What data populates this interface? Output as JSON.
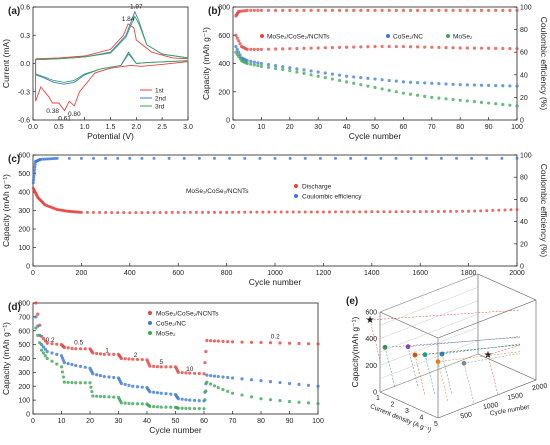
{
  "chart_data": [
    {
      "id": "a",
      "panel_label": "(a)",
      "type": "line",
      "xlabel": "Potential (V)",
      "ylabel": "Current (mA)",
      "xlim": [
        0,
        3.0
      ],
      "ylim": [
        -0.6,
        0.6
      ],
      "xticks": [
        "0.0",
        "0.5",
        "1.0",
        "1.5",
        "2.0",
        "2.5",
        "3.0"
      ],
      "yticks": [
        "-0.6",
        "-0.3",
        "0.0",
        "0.3",
        "0.6"
      ],
      "annotations": [
        "1.97",
        "1.84",
        "0.38",
        "0.61",
        "0.80"
      ],
      "annotation_points": [
        [
          2.0,
          0.55
        ],
        [
          1.84,
          0.42
        ],
        [
          0.38,
          -0.42
        ],
        [
          0.61,
          -0.5
        ],
        [
          0.8,
          -0.45
        ]
      ],
      "series": [
        {
          "name": "1st",
          "color": "#e8413c",
          "loop_upper": [
            [
              0.05,
              0.05
            ],
            [
              0.5,
              0.06
            ],
            [
              1.0,
              0.08
            ],
            [
              1.5,
              0.15
            ],
            [
              1.75,
              0.3
            ],
            [
              1.84,
              0.42
            ],
            [
              1.95,
              0.38
            ],
            [
              2.0,
              0.25
            ],
            [
              2.3,
              0.12
            ],
            [
              2.7,
              0.06
            ],
            [
              3.0,
              0.05
            ]
          ],
          "loop_lower": [
            [
              3.0,
              0.02
            ],
            [
              2.5,
              -0.01
            ],
            [
              2.1,
              -0.03
            ],
            [
              1.9,
              -0.02
            ],
            [
              1.5,
              -0.05
            ],
            [
              1.2,
              -0.1
            ],
            [
              0.9,
              -0.3
            ],
            [
              0.8,
              -0.45
            ],
            [
              0.7,
              -0.4
            ],
            [
              0.61,
              -0.5
            ],
            [
              0.5,
              -0.42
            ],
            [
              0.38,
              -0.42
            ],
            [
              0.3,
              -0.35
            ],
            [
              0.15,
              -0.25
            ],
            [
              0.05,
              -0.4
            ]
          ]
        },
        {
          "name": "2nd",
          "color": "#3b78d8",
          "loop_upper": [
            [
              0.05,
              0.04
            ],
            [
              0.5,
              0.05
            ],
            [
              1.0,
              0.07
            ],
            [
              1.5,
              0.12
            ],
            [
              1.8,
              0.3
            ],
            [
              1.97,
              0.55
            ],
            [
              2.05,
              0.45
            ],
            [
              2.2,
              0.2
            ],
            [
              2.5,
              0.1
            ],
            [
              3.0,
              0.06
            ]
          ],
          "loop_lower": [
            [
              3.0,
              0.03
            ],
            [
              2.2,
              0.01
            ],
            [
              2.0,
              0.0
            ],
            [
              1.85,
              0.12
            ],
            [
              1.7,
              -0.02
            ],
            [
              1.3,
              -0.06
            ],
            [
              1.0,
              -0.12
            ],
            [
              0.8,
              -0.2
            ],
            [
              0.6,
              -0.22
            ],
            [
              0.4,
              -0.2
            ],
            [
              0.2,
              -0.15
            ],
            [
              0.05,
              -0.12
            ]
          ]
        },
        {
          "name": "3rd",
          "color": "#3aa655",
          "loop_upper": [
            [
              0.05,
              0.04
            ],
            [
              0.5,
              0.05
            ],
            [
              1.0,
              0.07
            ],
            [
              1.5,
              0.11
            ],
            [
              1.8,
              0.28
            ],
            [
              1.97,
              0.5
            ],
            [
              2.05,
              0.42
            ],
            [
              2.2,
              0.2
            ],
            [
              2.5,
              0.1
            ],
            [
              3.0,
              0.06
            ]
          ],
          "loop_lower": [
            [
              3.0,
              0.03
            ],
            [
              2.2,
              0.01
            ],
            [
              2.0,
              0.0
            ],
            [
              1.85,
              0.1
            ],
            [
              1.7,
              -0.02
            ],
            [
              1.3,
              -0.06
            ],
            [
              1.0,
              -0.11
            ],
            [
              0.8,
              -0.18
            ],
            [
              0.6,
              -0.2
            ],
            [
              0.4,
              -0.18
            ],
            [
              0.2,
              -0.14
            ],
            [
              0.05,
              -0.11
            ]
          ]
        }
      ]
    },
    {
      "id": "b",
      "panel_label": "(b)",
      "type": "scatter",
      "xlabel": "Cycle number",
      "ylabel": "Capacity (mAh g⁻¹)",
      "y2label": "Coulombic efficiency (%)",
      "xlim": [
        0,
        100
      ],
      "ylim": [
        0,
        800
      ],
      "y2lim": [
        0,
        100
      ],
      "xticks": [
        "0",
        "10",
        "20",
        "30",
        "40",
        "50",
        "60",
        "70",
        "80",
        "90",
        "100"
      ],
      "yticks": [
        "0",
        "200",
        "400",
        "600",
        "800"
      ],
      "y2ticks": [
        "0",
        "20",
        "40",
        "60",
        "80",
        "100"
      ],
      "series": [
        {
          "name": "MoSe₂/CoSe₂/NCNTs",
          "color": "#e8413c",
          "x": [
            1,
            3,
            5,
            10,
            20,
            30,
            40,
            50,
            60,
            70,
            80,
            90,
            100
          ],
          "y": [
            600,
            520,
            500,
            500,
            505,
            510,
            515,
            520,
            520,
            515,
            510,
            508,
            505
          ]
        },
        {
          "name": "CoSe₂/NC",
          "color": "#3b78d8",
          "x": [
            1,
            3,
            5,
            10,
            20,
            30,
            40,
            50,
            60,
            70,
            80,
            90,
            100
          ],
          "y": [
            520,
            440,
            420,
            400,
            370,
            340,
            310,
            290,
            270,
            260,
            250,
            245,
            240
          ]
        },
        {
          "name": "MoSe₂",
          "color": "#3aa655",
          "x": [
            1,
            3,
            5,
            10,
            20,
            30,
            40,
            50,
            60,
            70,
            80,
            90,
            100
          ],
          "y": [
            480,
            420,
            400,
            380,
            350,
            310,
            270,
            230,
            190,
            160,
            140,
            120,
            100
          ]
        },
        {
          "name": "CE",
          "color": "#e8413c",
          "axis": "y2",
          "x": [
            1,
            2,
            5,
            10,
            20,
            30,
            40,
            50,
            60,
            70,
            80,
            90,
            100
          ],
          "y": [
            92,
            96,
            97,
            97,
            97,
            97,
            97,
            97,
            97,
            97,
            97,
            97,
            97
          ]
        }
      ]
    },
    {
      "id": "c",
      "panel_label": "(c)",
      "type": "scatter",
      "xlabel": "Cycle number",
      "ylabel": "Capacity (mAh g⁻¹)",
      "y2label": "Coulombic efficiency (%)",
      "xlim": [
        0,
        2000
      ],
      "ylim": [
        0,
        600
      ],
      "y2lim": [
        0,
        100
      ],
      "xticks": [
        "0",
        "200",
        "400",
        "600",
        "800",
        "1000",
        "1200",
        "1400",
        "1600",
        "1800",
        "2000"
      ],
      "yticks": [
        "0",
        "100",
        "200",
        "300",
        "400",
        "500",
        "600"
      ],
      "y2ticks": [
        "0",
        "20",
        "40",
        "60",
        "80",
        "100"
      ],
      "legend_title": "MoSe₂/CoSe₂/NCNTs",
      "series": [
        {
          "name": "Discharge",
          "color": "#e8413c",
          "x": [
            1,
            20,
            50,
            100,
            150,
            200,
            400,
            600,
            800,
            1000,
            1200,
            1400,
            1600,
            1800,
            2000
          ],
          "y": [
            420,
            370,
            330,
            305,
            295,
            290,
            288,
            290,
            290,
            292,
            292,
            293,
            294,
            296,
            305
          ]
        },
        {
          "name": "Coulombic efficiency",
          "color": "#3b78d8",
          "axis": "y2",
          "x": [
            1,
            10,
            30,
            100,
            500,
            1000,
            1500,
            2000
          ],
          "y": [
            75,
            94,
            96,
            97,
            97,
            97,
            97,
            97
          ]
        }
      ]
    },
    {
      "id": "d",
      "panel_label": "(d)",
      "type": "scatter",
      "xlabel": "Cycle number",
      "ylabel": "Capacity (mAh g⁻¹)",
      "xlim": [
        0,
        100
      ],
      "ylim": [
        0,
        800
      ],
      "xticks": [
        "0",
        "10",
        "20",
        "30",
        "40",
        "50",
        "60",
        "70",
        "80",
        "90",
        "100"
      ],
      "yticks": [
        "0",
        "100",
        "200",
        "300",
        "400",
        "500",
        "600",
        "700",
        "800"
      ],
      "rate_labels": [
        "0.2",
        "0.5",
        "1",
        "2",
        "5",
        "10",
        "0.2"
      ],
      "rate_label_points": [
        [
          6,
          520
        ],
        [
          16,
          500
        ],
        [
          26,
          445
        ],
        [
          36,
          410
        ],
        [
          45,
          360
        ],
        [
          55,
          310
        ],
        [
          85,
          545
        ]
      ],
      "series": [
        {
          "name": "MoSe₂/CoSe₂/NCNTs",
          "color": "#e8413c",
          "x": [
            1,
            3,
            5,
            10,
            11,
            15,
            20,
            21,
            25,
            30,
            31,
            35,
            40,
            41,
            45,
            50,
            51,
            55,
            60,
            61,
            65,
            70,
            80,
            90,
            100
          ],
          "y": [
            800,
            560,
            510,
            500,
            480,
            470,
            470,
            440,
            430,
            430,
            400,
            395,
            390,
            345,
            340,
            340,
            300,
            295,
            290,
            530,
            525,
            520,
            515,
            510,
            505
          ]
        },
        {
          "name": "CoSe₂/NC",
          "color": "#3b78d8",
          "x": [
            1,
            3,
            5,
            10,
            11,
            15,
            20,
            21,
            25,
            30,
            31,
            35,
            40,
            41,
            45,
            50,
            51,
            55,
            60,
            61,
            65,
            70,
            80,
            90,
            100
          ],
          "y": [
            700,
            500,
            450,
            420,
            370,
            350,
            330,
            290,
            270,
            260,
            220,
            200,
            190,
            160,
            150,
            140,
            110,
            100,
            95,
            280,
            270,
            260,
            240,
            220,
            200
          ]
        },
        {
          "name": "MoSe₂",
          "color": "#3aa655",
          "x": [
            1,
            3,
            5,
            10,
            11,
            15,
            20,
            21,
            25,
            30,
            31,
            35,
            40,
            41,
            45,
            50,
            51,
            55,
            60,
            61,
            65,
            70,
            80,
            90,
            100
          ],
          "y": [
            620,
            460,
            400,
            340,
            230,
            225,
            225,
            130,
            125,
            120,
            80,
            75,
            72,
            55,
            50,
            48,
            42,
            40,
            38,
            230,
            190,
            150,
            110,
            90,
            75
          ]
        }
      ]
    },
    {
      "id": "e",
      "panel_label": "(e)",
      "type": "scatter",
      "zlabel": "Capacity(mAh g⁻¹)",
      "xlabel": "Current density (A g⁻¹)",
      "ylabel": "Cycle number",
      "zticks": [
        "0",
        "100",
        "200",
        "300",
        "400",
        "500",
        "600"
      ],
      "xticks": [
        "1",
        "2",
        "3",
        "4",
        "5"
      ],
      "yticks": [
        "0",
        "500",
        "1000",
        "1500",
        "2000"
      ],
      "markers": [
        {
          "shape": "star",
          "color": "#e8413c",
          "z": 540
        },
        {
          "shape": "star",
          "color": "#e8413c",
          "z": 300
        },
        {
          "shape": "circle",
          "color": "#3a8f52",
          "z": 380
        },
        {
          "shape": "circle",
          "color": "#8e44ad",
          "z": 340
        },
        {
          "shape": "circle",
          "color": "#d35400",
          "z": 300
        },
        {
          "shape": "circle",
          "color": "#2980b9",
          "z": 330
        },
        {
          "shape": "circle",
          "color": "#16a085",
          "z": 280
        },
        {
          "shape": "circle",
          "color": "#e67e22",
          "z": 250
        },
        {
          "shape": "circle",
          "color": "#7f8c8d",
          "z": 260
        }
      ]
    }
  ]
}
